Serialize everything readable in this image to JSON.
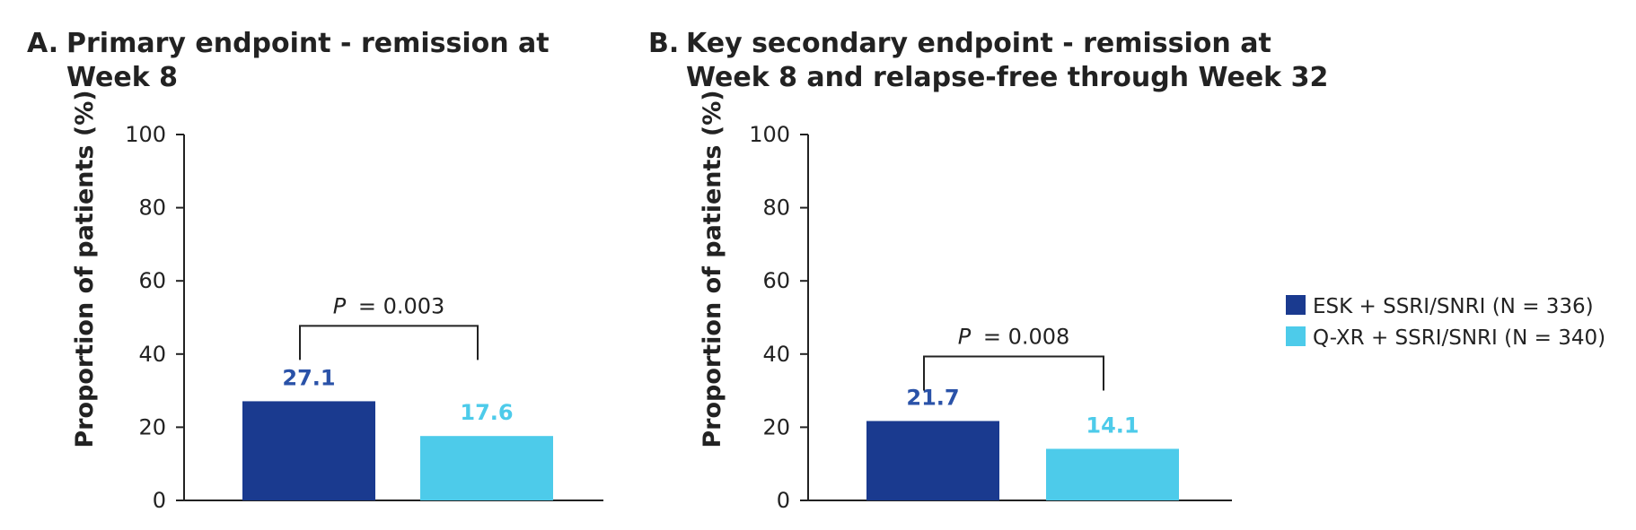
{
  "chart_data": [
    {
      "type": "bar",
      "title_prefix": "A.",
      "title_lines": [
        "Primary endpoint - remission at",
        "Week 8"
      ],
      "ylabel": "Proportion of patients (%)",
      "xlabel": "",
      "ylim": [
        0,
        100
      ],
      "yticks": [
        0,
        20,
        40,
        60,
        80,
        100
      ],
      "categories": [
        "ESK + SSRI/SNRI (N = 336)",
        "Q-XR + SSRI/SNRI (N = 340)"
      ],
      "values": [
        27.1,
        17.6
      ],
      "value_labels": [
        "27.1",
        "17.6"
      ],
      "comparison": {
        "p_symbol": "P",
        "p_text": "= 0.003"
      }
    },
    {
      "type": "bar",
      "title_prefix": "B.",
      "title_lines": [
        "Key secondary endpoint - remission at",
        "Week 8 and relapse-free through Week 32"
      ],
      "ylabel": "Proportion of patients (%)",
      "xlabel": "",
      "ylim": [
        0,
        100
      ],
      "yticks": [
        0,
        20,
        40,
        60,
        80,
        100
      ],
      "categories": [
        "ESK + SSRI/SNRI (N = 336)",
        "Q-XR + SSRI/SNRI (N = 340)"
      ],
      "values": [
        21.7,
        14.1
      ],
      "value_labels": [
        "21.7",
        "14.1"
      ],
      "comparison": {
        "p_symbol": "P",
        "p_text": "= 0.008"
      }
    }
  ],
  "legend": [
    {
      "label": "ESK + SSRI/SNRI (N = 336)",
      "color": "#1a3a8f"
    },
    {
      "label": "Q-XR + SSRI/SNRI (N = 340)",
      "color": "#4dcbea"
    }
  ],
  "colors": {
    "series_dark": "#1a3a8f",
    "series_light": "#4dcbea",
    "value_dark": "#2a52a8",
    "value_light": "#4dcbea"
  }
}
